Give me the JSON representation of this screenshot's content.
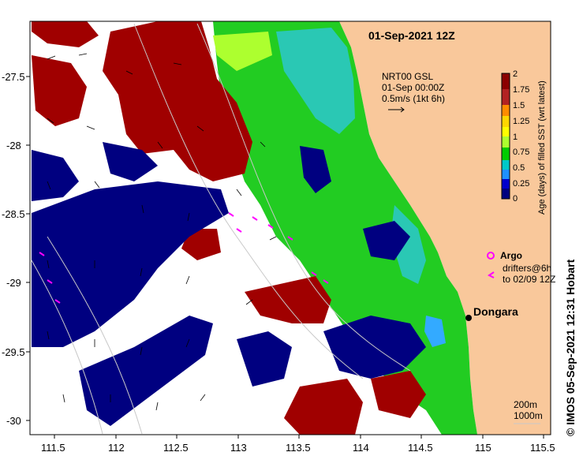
{
  "title": "01-Sep-2021 12Z",
  "credit": "© IMOS 05-Sep-2021 12:31 Hobart",
  "current_legend": {
    "line1": "NRT00 GSL",
    "line2": "01-Sep 00:00Z",
    "line3": "0.5m/s (1kt 6h)"
  },
  "argo_legend": {
    "label": "Argo",
    "line1": "drifters@6h",
    "line2": "to 02/09 12Z"
  },
  "place_label": "Dongara",
  "depth_legend": {
    "line1": "200m",
    "line2": "1000m"
  },
  "colorbar": {
    "label": "Age (days) of filled SST (wrt latest)",
    "ticks": [
      "2",
      "1.75",
      "1.5",
      "1.25",
      "1",
      "0.75",
      "0.5",
      "0.25",
      "0"
    ],
    "colors": [
      "#8b0000",
      "#b22222",
      "#ff8c00",
      "#ffd700",
      "#ffff00",
      "#adff2f",
      "#00cc00",
      "#00c8c8",
      "#1e90ff",
      "#0000cd",
      "#000080"
    ]
  },
  "axes": {
    "x_ticks": [
      "111.5",
      "112",
      "112.5",
      "113",
      "113.5",
      "114",
      "114.5",
      "115",
      "115.5"
    ],
    "y_ticks": [
      "-27.5",
      "-28",
      "-28.5",
      "-29",
      "-29.5",
      "-30"
    ],
    "x_range": [
      111.3,
      115.6
    ],
    "y_range": [
      -30.1,
      -27.1
    ]
  },
  "colors": {
    "land": "#f9c89b",
    "stale": "#a00000",
    "fresh_blue": "#000080",
    "green": "#22cc22",
    "cyan": "#2ac8b4",
    "argo": "#ff00ff"
  }
}
